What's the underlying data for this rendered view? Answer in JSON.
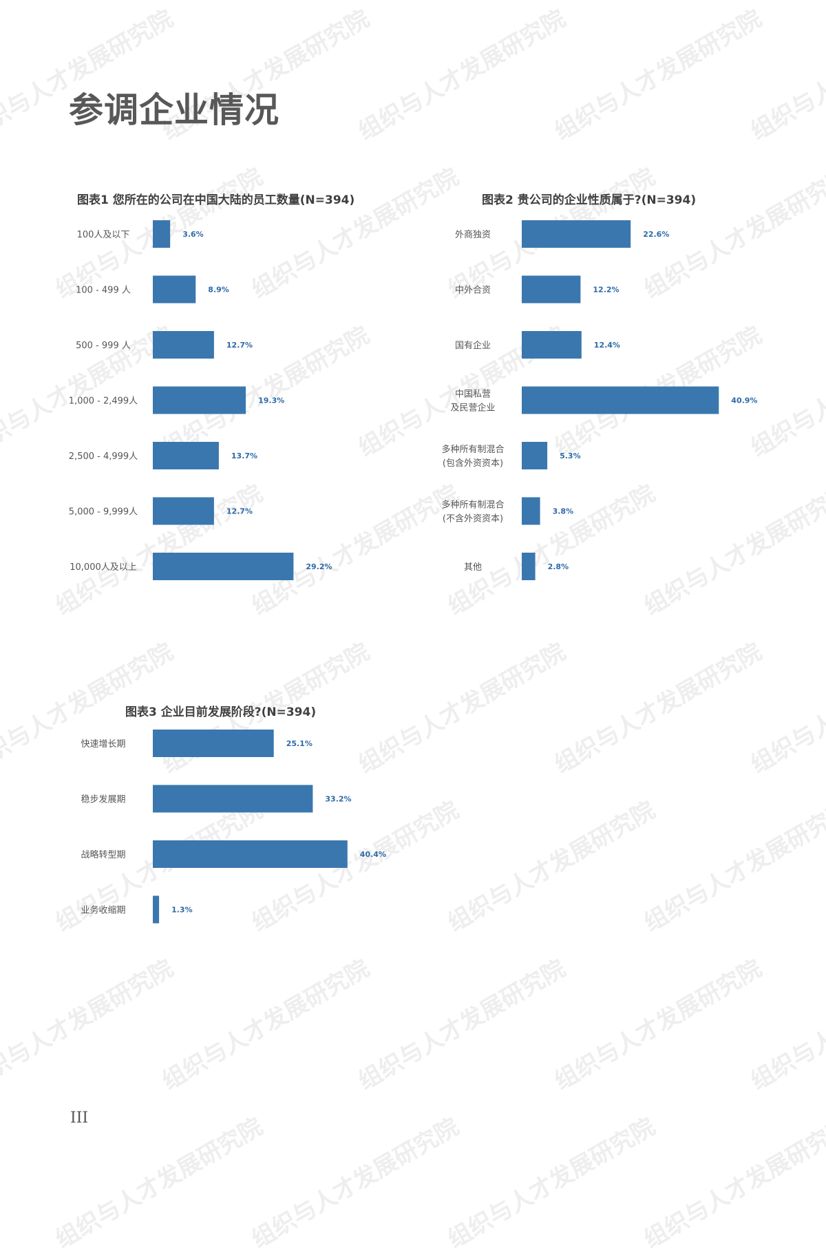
{
  "watermark": {
    "text": "组织与人才发展研究院"
  },
  "page": {
    "title": "参调企业情况",
    "number": "III"
  },
  "colors": {
    "bar": "#3a77ae",
    "value_label": "#2e6aa8",
    "title": "#585858"
  },
  "chart_data": [
    {
      "type": "bar",
      "orientation": "horizontal",
      "title": "图表1 您所在的公司在中国大陆的员工数量(N=394)",
      "categories": [
        "100人及以下",
        "100 - 499 人",
        "500 - 999 人",
        "1,000 - 2,499人",
        "2,500 - 4,999人",
        "5,000 - 9,999人",
        "10,000人及以上"
      ],
      "values": [
        3.6,
        8.9,
        12.7,
        19.3,
        13.7,
        12.7,
        29.2
      ],
      "value_labels": [
        "3.6%",
        "8.9%",
        "12.7%",
        "19.3%",
        "13.7%",
        "12.7%",
        "29.2%"
      ],
      "unit": "%",
      "xlim": [
        0,
        65
      ],
      "grid": false
    },
    {
      "type": "bar",
      "orientation": "horizontal",
      "title": "图表2 贵公司的企业性质属于?(N=394)",
      "categories": [
        "外商独资",
        "中外合资",
        "国有企业",
        "中国私营\n及民营企业",
        "多种所有制混合\n(包含外资资本)",
        "多种所有制混合\n(不含外资资本)",
        "其他"
      ],
      "values": [
        22.6,
        12.2,
        12.4,
        40.9,
        5.3,
        3.8,
        2.8
      ],
      "value_labels": [
        "22.6%",
        "12.2%",
        "12.4%",
        "40.9%",
        "5.3%",
        "3.8%",
        "2.8%"
      ],
      "unit": "%",
      "xlim": [
        0,
        65
      ],
      "grid": false
    },
    {
      "type": "bar",
      "orientation": "horizontal",
      "title": "图表3 企业目前发展阶段?(N=394)",
      "categories": [
        "快速增长期",
        "稳步发展期",
        "战略转型期",
        "业务收缩期"
      ],
      "values": [
        25.1,
        33.2,
        40.4,
        1.3
      ],
      "value_labels": [
        "25.1%",
        "33.2%",
        "40.4%",
        "1.3%"
      ],
      "unit": "%",
      "xlim": [
        0,
        65
      ],
      "grid": false
    }
  ]
}
